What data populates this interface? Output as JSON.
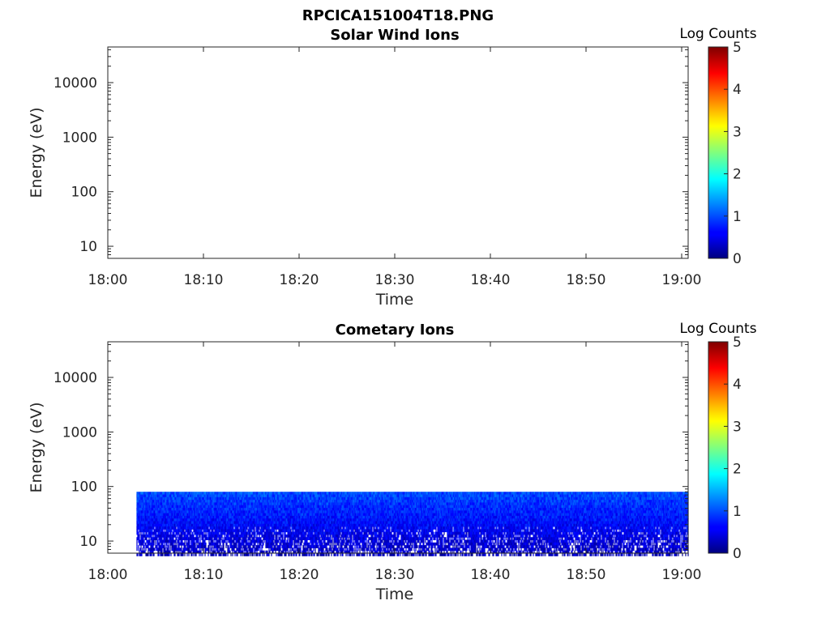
{
  "figure": {
    "title": "RPCICA151004T18.PNG"
  },
  "colors": {
    "colormap": "jet",
    "background": "#ffffff",
    "axis": "#262626"
  },
  "chart_data": [
    {
      "type": "heatmap",
      "title": "Solar Wind Ions",
      "xlabel": "Time",
      "ylabel": "Energy (eV)",
      "x_tick_labels": [
        "18:00",
        "18:10",
        "18:20",
        "18:30",
        "18:40",
        "18:50",
        "19:00"
      ],
      "x_range": [
        "18:00",
        "19:00"
      ],
      "y_scale": "log",
      "y_range": [
        6,
        45000
      ],
      "y_tick_values": [
        10,
        100,
        1000,
        10000
      ],
      "y_tick_labels": [
        "10",
        "100",
        "1000",
        "10000"
      ],
      "colorbar": {
        "title": "Log Counts",
        "range": [
          0,
          5
        ],
        "tick_labels": [
          "0",
          "1",
          "2",
          "3",
          "4",
          "5"
        ]
      },
      "data_regions": []
    },
    {
      "type": "heatmap",
      "title": "Cometary Ions",
      "xlabel": "Time",
      "ylabel": "Energy (eV)",
      "x_tick_labels": [
        "18:00",
        "18:10",
        "18:20",
        "18:30",
        "18:40",
        "18:50",
        "19:00"
      ],
      "x_range": [
        "18:00",
        "19:00"
      ],
      "y_scale": "log",
      "y_range": [
        6,
        45000
      ],
      "y_tick_values": [
        10,
        100,
        1000,
        10000
      ],
      "y_tick_labels": [
        "10",
        "100",
        "1000",
        "10000"
      ],
      "colorbar": {
        "title": "Log Counts",
        "range": [
          0,
          5
        ],
        "tick_labels": [
          "0",
          "1",
          "2",
          "3",
          "4",
          "5"
        ]
      },
      "data_regions": [
        {
          "time_start": "18:03",
          "time_end": "19:00",
          "energy_min_eV": 6,
          "energy_max_eV": 80,
          "log_counts_range": [
            0,
            1.4
          ],
          "typical_log_counts_upper_band": 1.0,
          "typical_log_counts_lower_band": 0.3
        }
      ]
    }
  ]
}
